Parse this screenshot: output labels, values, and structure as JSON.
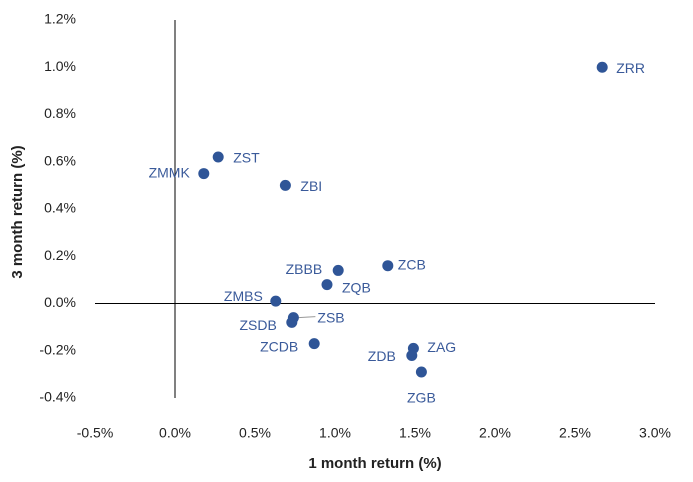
{
  "chart_data": {
    "type": "scatter",
    "x_label": "1 month return (%)",
    "y_label": "3 month return (%)",
    "xlim": [
      -0.5,
      3.0
    ],
    "ylim": [
      -0.4,
      1.2
    ],
    "xticks": [
      {
        "value": -0.5,
        "label": "-0.5%"
      },
      {
        "value": 0,
        "label": "0.0%"
      },
      {
        "value": 0.5,
        "label": "0.5%"
      },
      {
        "value": 1.0,
        "label": "1.0%"
      },
      {
        "value": 1.5,
        "label": "1.5%"
      },
      {
        "value": 2.0,
        "label": "2.0%"
      },
      {
        "value": 2.5,
        "label": "2.5%"
      },
      {
        "value": 3.0,
        "label": "3.0%"
      }
    ],
    "yticks": [
      {
        "value": -0.4,
        "label": "-0.4%"
      },
      {
        "value": -0.2,
        "label": "-0.2%"
      },
      {
        "value": 0,
        "label": "0.0%"
      },
      {
        "value": 0.2,
        "label": "0.2%"
      },
      {
        "value": 0.4,
        "label": "0.4%"
      },
      {
        "value": 0.6,
        "label": "0.6%"
      },
      {
        "value": 0.8,
        "label": "0.8%"
      },
      {
        "value": 1.0,
        "label": "1.0%"
      },
      {
        "value": 1.2,
        "label": "1.2%"
      }
    ],
    "series": [
      {
        "color": "#2f5597",
        "labels": [
          "ZRR",
          "ZST",
          "ZMMK",
          "ZBI",
          "ZCB",
          "ZBBB",
          "ZQB",
          "ZMBS",
          "ZSB",
          "ZSDB",
          "ZCDB",
          "ZAG",
          "ZDB",
          "ZGB"
        ],
        "x": [
          2.67,
          0.27,
          0.18,
          0.69,
          1.33,
          1.02,
          0.95,
          0.63,
          0.74,
          0.73,
          0.87,
          1.49,
          1.48,
          1.54
        ],
        "values": [
          1.0,
          0.62,
          0.55,
          0.5,
          0.16,
          0.14,
          0.08,
          0.01,
          -0.06,
          -0.08,
          -0.17,
          -0.19,
          -0.22,
          -0.29
        ]
      }
    ]
  }
}
